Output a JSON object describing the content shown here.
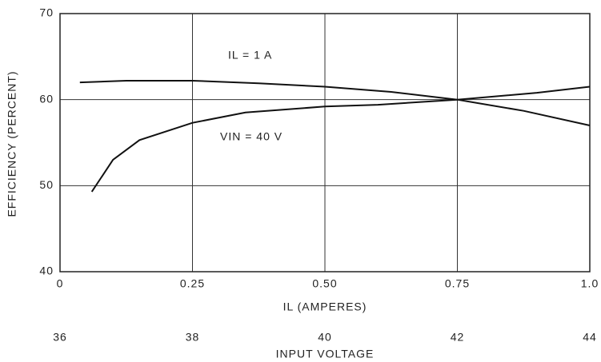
{
  "chart_data": {
    "type": "line",
    "ylabel": "EFFICIENCY (PERCENT)",
    "xlabel": "IL (AMPERES)",
    "x2label": "INPUT VOLTAGE",
    "ylim": [
      40,
      70
    ],
    "yticks": [
      40,
      50,
      60,
      70
    ],
    "xlim": [
      0,
      1
    ],
    "xticks": [
      0,
      0.25,
      {
        "value": 0.5,
        "label": "0.50"
      },
      0.75,
      {
        "value": 1,
        "label": "1.0"
      }
    ],
    "x2lim": [
      36,
      44
    ],
    "x2ticks": [
      36,
      38,
      40,
      42,
      44
    ],
    "grid": true,
    "series": [
      {
        "name": "IL = 1 A",
        "color": "#111111",
        "axis": "x2",
        "x": [
          36.3,
          37,
          38,
          39,
          40,
          41,
          42,
          43,
          44
        ],
        "values": [
          62,
          62.2,
          62.2,
          61.9,
          61.5,
          60.9,
          60,
          58.7,
          57
        ]
      },
      {
        "name": "VIN = 40 V",
        "color": "#111111",
        "axis": "x",
        "x": [
          0.06,
          0.1,
          0.15,
          0.25,
          0.35,
          0.5,
          0.6,
          0.75,
          0.9,
          1
        ],
        "values": [
          49.3,
          53,
          55.3,
          57.3,
          58.5,
          59.2,
          59.4,
          60,
          60.8,
          61.5
        ]
      }
    ]
  }
}
